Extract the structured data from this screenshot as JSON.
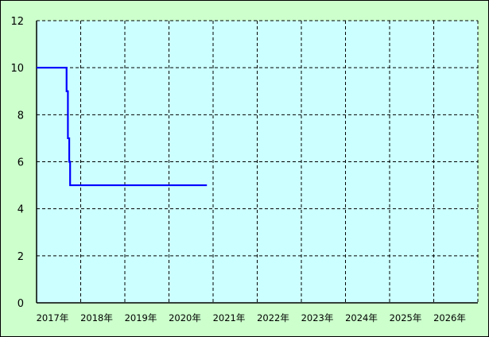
{
  "chart_data": {
    "type": "line",
    "title": "",
    "xlabel": "",
    "ylabel": "",
    "xlim": [
      2017,
      2027
    ],
    "ylim": [
      0,
      12
    ],
    "grid": true,
    "x_tick_labels": [
      "2017年",
      "2018年",
      "2019年",
      "2020年",
      "2021年",
      "2022年",
      "2023年",
      "2024年",
      "2025年",
      "2026年"
    ],
    "y_tick_labels": [
      "0",
      "2",
      "4",
      "6",
      "8",
      "10",
      "12"
    ],
    "y_ticks": [
      0,
      2,
      4,
      6,
      8,
      10,
      12
    ],
    "x_ticks": [
      2017,
      2018,
      2019,
      2020,
      2021,
      2022,
      2023,
      2024,
      2025,
      2026,
      2027
    ],
    "series": [
      {
        "color": "#0000ff",
        "step": true,
        "x": [
          2017.0,
          2017.68,
          2017.71,
          2017.74,
          2017.76,
          2020.86
        ],
        "y": [
          10,
          9,
          7,
          6,
          5,
          5
        ]
      }
    ],
    "colors": {
      "background": "#ccffcc",
      "plot_background": "#ccffff",
      "grid": "#000000"
    }
  }
}
